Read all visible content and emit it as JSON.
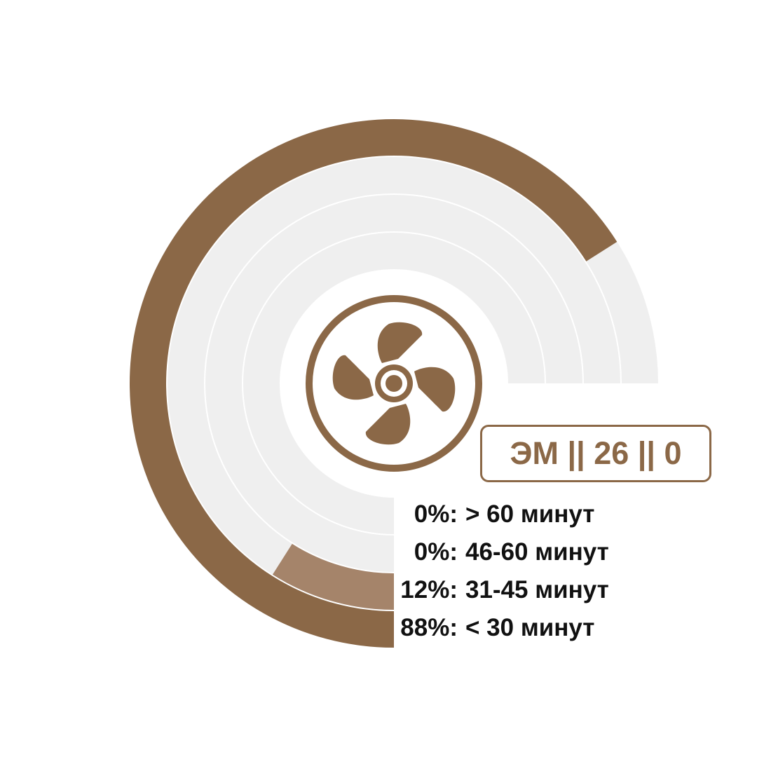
{
  "chart_data": {
    "type": "radial-bar",
    "series": [
      {
        "pct": 88,
        "pct_label": "88%:",
        "range_label": "< 30 минут",
        "value": 88
      },
      {
        "pct": 12,
        "pct_label": "12%:",
        "range_label": "31-45 минут",
        "value": 12
      },
      {
        "pct": 0,
        "pct_label": "0%:",
        "range_label": "46-60 минут",
        "value": 0
      },
      {
        "pct": 0,
        "pct_label": "0%:",
        "range_label": "> 60 минут",
        "value": 0
      }
    ],
    "max_value": 100,
    "center_icon": "fan-icon"
  },
  "badge": {
    "text": "ЭМ || 26 || 0"
  },
  "colors": {
    "outer_bar": "#8b6847",
    "second_bar": "#a5846a",
    "track": "#efefef",
    "icon": "#8b6847",
    "text": "#111111"
  }
}
